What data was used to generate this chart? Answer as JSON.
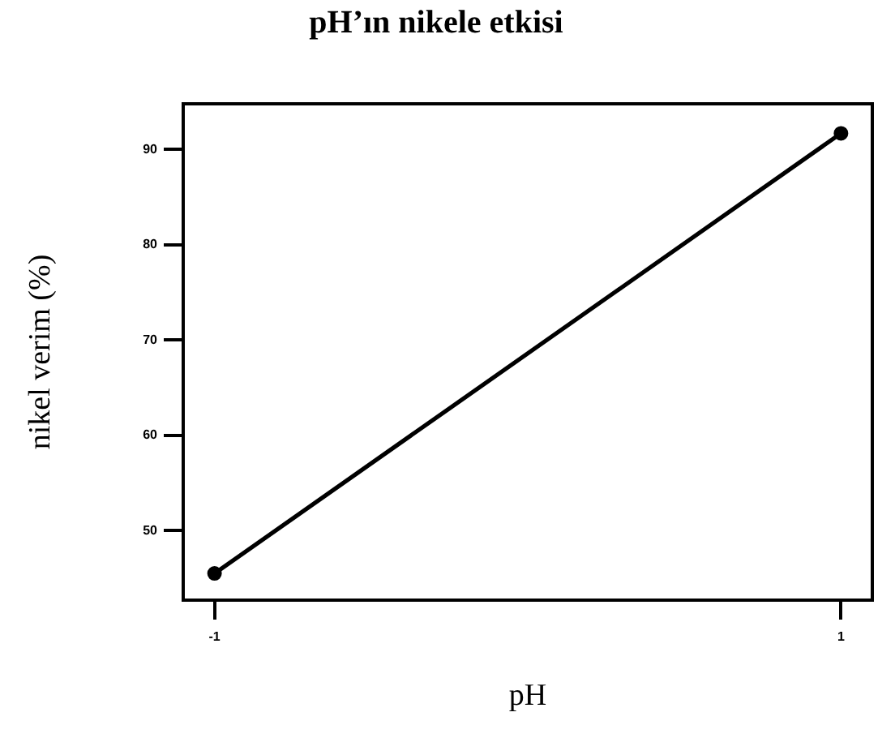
{
  "chart_data": {
    "type": "line",
    "title": "pH’ın nikele etkisi",
    "xlabel": "pH",
    "ylabel": "nikel verim (%)",
    "x": [
      -1,
      1
    ],
    "values": [
      45.5,
      91.7
    ],
    "color": "#000000",
    "marker": "circle",
    "line_style": "solid",
    "xlim": [
      -1.1,
      1.1
    ],
    "xticks": [
      -1,
      1
    ],
    "ylim": [
      42.7,
      94.8
    ],
    "yticks": [
      50,
      60,
      70,
      80,
      90
    ]
  }
}
